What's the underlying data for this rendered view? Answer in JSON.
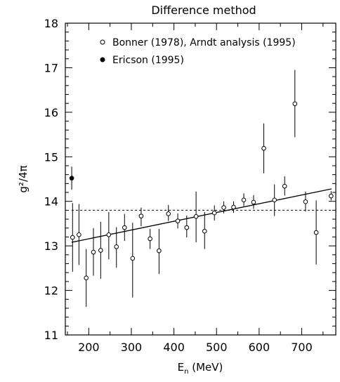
{
  "chart_data": {
    "type": "scatter",
    "title": "Difference method",
    "xlabel": "E",
    "xlabel_sub": "n",
    "xlabel_unit": " (MeV)",
    "ylabel": "g²/4π",
    "xlim": [
      145,
      780
    ],
    "ylim": [
      11,
      18
    ],
    "x_ticks": [
      200,
      300,
      400,
      500,
      600,
      700
    ],
    "x_tick_labels": [
      "200",
      "300",
      "400",
      "500",
      "600",
      "700"
    ],
    "y_ticks": [
      11,
      12,
      13,
      14,
      15,
      16,
      17,
      18
    ],
    "y_tick_labels": [
      "11",
      "12",
      "13",
      "14",
      "15",
      "16",
      "17",
      "18"
    ],
    "legend_position": "top",
    "series": [
      {
        "name": "Bonner (1978), Arndt analysis (1995)",
        "marker": "open-circle",
        "points": [
          {
            "x": 162,
            "y": 13.19,
            "lo": 12.42,
            "hi": 13.96
          },
          {
            "x": 177,
            "y": 13.25,
            "lo": 12.57,
            "hi": 13.94
          },
          {
            "x": 194,
            "y": 12.28,
            "lo": 11.63,
            "hi": 12.93
          },
          {
            "x": 211,
            "y": 12.86,
            "lo": 12.33,
            "hi": 13.4
          },
          {
            "x": 228,
            "y": 12.9,
            "lo": 12.26,
            "hi": 13.54
          },
          {
            "x": 247,
            "y": 13.25,
            "lo": 12.7,
            "hi": 13.76
          },
          {
            "x": 265,
            "y": 12.98,
            "lo": 12.51,
            "hi": 13.42
          },
          {
            "x": 284,
            "y": 13.41,
            "lo": 13.11,
            "hi": 13.72
          },
          {
            "x": 303,
            "y": 12.72,
            "lo": 11.84,
            "hi": 13.52
          },
          {
            "x": 323,
            "y": 13.67,
            "lo": 13.44,
            "hi": 13.86
          },
          {
            "x": 344,
            "y": 13.16,
            "lo": 12.93,
            "hi": 13.38
          },
          {
            "x": 365,
            "y": 12.89,
            "lo": 12.37,
            "hi": 13.38
          },
          {
            "x": 387,
            "y": 13.72,
            "lo": 13.56,
            "hi": 13.92
          },
          {
            "x": 409,
            "y": 13.56,
            "lo": 13.39,
            "hi": 13.73
          },
          {
            "x": 430,
            "y": 13.41,
            "lo": 13.19,
            "hi": 13.68
          },
          {
            "x": 452,
            "y": 13.66,
            "lo": 13.08,
            "hi": 14.22
          },
          {
            "x": 472,
            "y": 13.33,
            "lo": 12.93,
            "hi": 13.76
          },
          {
            "x": 495,
            "y": 13.74,
            "lo": 13.57,
            "hi": 13.91
          },
          {
            "x": 517,
            "y": 13.86,
            "lo": 13.73,
            "hi": 14.0
          },
          {
            "x": 540,
            "y": 13.87,
            "lo": 13.74,
            "hi": 14.0
          },
          {
            "x": 564,
            "y": 14.03,
            "lo": 13.89,
            "hi": 14.18
          },
          {
            "x": 587,
            "y": 13.98,
            "lo": 13.83,
            "hi": 14.14
          },
          {
            "x": 611,
            "y": 15.19,
            "lo": 14.63,
            "hi": 15.75
          },
          {
            "x": 636,
            "y": 14.03,
            "lo": 13.67,
            "hi": 14.38
          },
          {
            "x": 660,
            "y": 14.34,
            "lo": 14.13,
            "hi": 14.56
          },
          {
            "x": 684,
            "y": 16.19,
            "lo": 15.44,
            "hi": 16.95
          },
          {
            "x": 709,
            "y": 13.99,
            "lo": 13.77,
            "hi": 14.22
          },
          {
            "x": 734,
            "y": 13.3,
            "lo": 12.58,
            "hi": 14.02
          },
          {
            "x": 769,
            "y": 14.12,
            "lo": 14.02,
            "hi": 14.23
          }
        ]
      },
      {
        "name": "Ericson (1995)",
        "marker": "filled-circle",
        "points": [
          {
            "x": 160,
            "y": 14.52,
            "lo": 14.26,
            "hi": 14.78
          }
        ]
      }
    ],
    "fit_line": {
      "x": [
        160,
        770
      ],
      "y": [
        13.08,
        14.28
      ]
    },
    "reference_line": {
      "y": 13.8,
      "x": [
        160,
        770
      ],
      "style": "dashed"
    }
  }
}
